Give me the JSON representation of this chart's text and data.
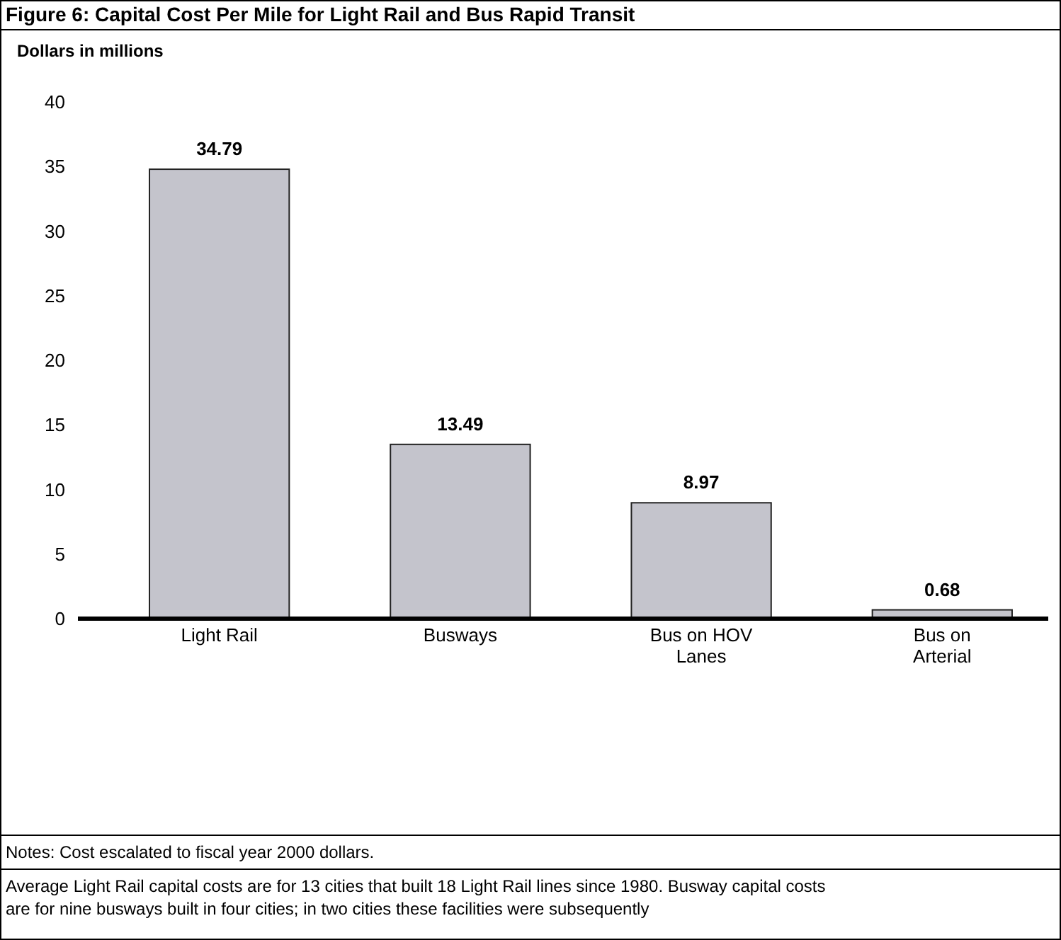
{
  "chart_data": {
    "type": "bar",
    "title": "Figure 6:  Capital Cost Per Mile for Light Rail and Bus Rapid Transit",
    "ylabel": "Dollars in millions",
    "categories": [
      "Light Rail",
      "Busways",
      "Bus on HOV Lanes",
      "Bus on Arterial"
    ],
    "values": [
      34.79,
      13.49,
      8.97,
      0.68
    ],
    "color": "#c4c4cc",
    "ylim": [
      0,
      40
    ],
    "yticks": [
      0,
      5,
      10,
      15,
      20,
      25,
      30,
      35,
      40
    ],
    "grid": false,
    "data_labels": true,
    "annotations": [
      "Notes: Cost escalated to fiscal year 2000 dollars.",
      "Average Light Rail capital costs are for 13 cities that built 18 Light Rail lines since 1980.  Busway capital costs are for nine busways built in four cities; in two cities these facilities were subsequently"
    ]
  }
}
